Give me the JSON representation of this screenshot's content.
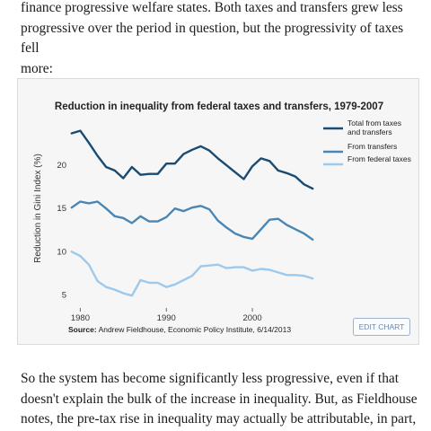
{
  "article": {
    "para_top_lines": [
      "finance progressive welfare states. Both taxes and transfers grew less",
      "progressive over the period in question, but the progressivity of taxes fell",
      "more:"
    ],
    "para_bottom_lines": [
      "So the system has become significantly less progressive, even if that",
      "doesn't explain the bulk of the increase in inequality. But, as Fieldhouse",
      "notes, the pre-tax rise in inequality may actually be attributable, in part,"
    ]
  },
  "source": {
    "label": "Source:",
    "text": "Andrew Fieldhouse, Economic Policy Institute, 6/14/2013"
  },
  "edit_button_label": "EDIT CHART",
  "chart_data": {
    "type": "line",
    "title": "Reduction in inequality from federal taxes and transfers, 1979-2007",
    "xlabel": "",
    "ylabel": "Reduction in Gini Index (%)",
    "x": [
      1979,
      1980,
      1981,
      1982,
      1983,
      1984,
      1985,
      1986,
      1987,
      1988,
      1989,
      1990,
      1991,
      1992,
      1993,
      1994,
      1995,
      1996,
      1997,
      1998,
      1999,
      2000,
      2001,
      2002,
      2003,
      2004,
      2005,
      2006,
      2007
    ],
    "xlim": [
      1978.6,
      2007.4
    ],
    "ylim": [
      4,
      25
    ],
    "xticks": [
      1980,
      1990,
      2000
    ],
    "yticks": [
      5,
      10,
      15,
      20
    ],
    "grid": false,
    "legend_position": "top-right",
    "series": [
      {
        "name": "Total from taxes and transfers",
        "legend_lines": [
          "Total from taxes",
          "and transfers"
        ],
        "color": "#1a4b72",
        "values": [
          23.7,
          24.0,
          22.6,
          21.1,
          19.8,
          19.4,
          18.5,
          19.8,
          18.9,
          19.0,
          19.0,
          20.2,
          20.2,
          21.3,
          21.8,
          22.2,
          21.7,
          20.8,
          20.0,
          19.2,
          18.4,
          19.9,
          20.8,
          20.5,
          19.4,
          19.1,
          18.7,
          17.8,
          17.3
        ]
      },
      {
        "name": "From transfers",
        "legend_lines": [
          "From transfers"
        ],
        "color": "#4a86b4",
        "values": [
          15.1,
          15.8,
          15.6,
          15.8,
          15.0,
          14.1,
          13.9,
          13.3,
          14.1,
          13.5,
          13.5,
          14.0,
          15.0,
          14.7,
          15.1,
          15.3,
          14.9,
          13.6,
          12.8,
          12.1,
          11.7,
          11.5,
          12.6,
          13.7,
          13.8,
          13.1,
          12.6,
          12.1,
          11.4
        ]
      },
      {
        "name": "From federal taxes",
        "legend_lines": [
          "From federal taxes"
        ],
        "color": "#9cc9ec",
        "values": [
          10.0,
          9.5,
          8.5,
          6.6,
          5.9,
          5.6,
          5.2,
          4.9,
          6.7,
          6.4,
          6.4,
          5.9,
          6.2,
          6.7,
          7.2,
          8.3,
          8.4,
          8.5,
          8.1,
          8.2,
          8.2,
          7.8,
          8.0,
          7.9,
          7.6,
          7.3,
          7.3,
          7.2,
          6.9
        ]
      }
    ]
  }
}
